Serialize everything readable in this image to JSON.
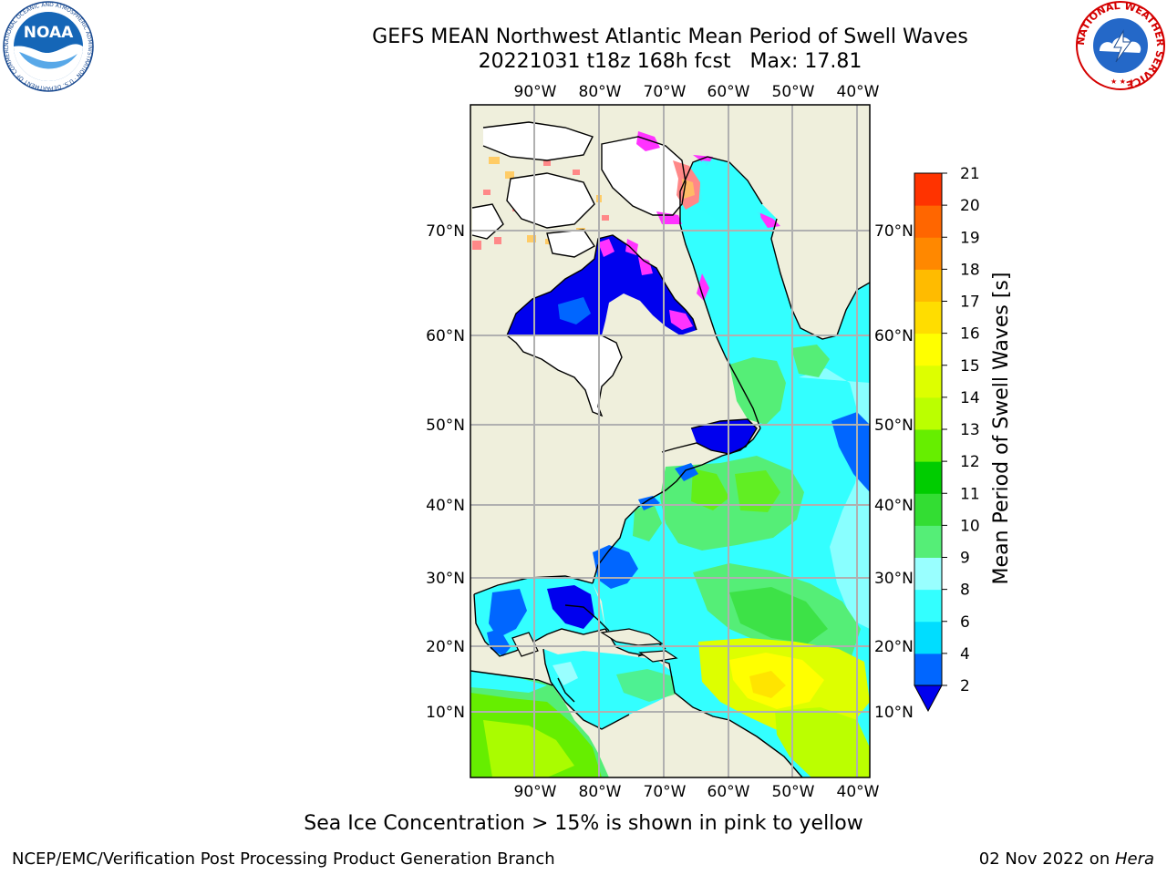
{
  "header": {
    "title": "GEFS MEAN Northwest Atlantic Mean Period of Swell Waves",
    "subtitle": "20221031 t18z 168h fcst   Max: 17.81"
  },
  "logos": {
    "noaa": {
      "label": "NOAA",
      "ring_text": "NATIONAL OCEANIC AND ATMOSPHERIC ADMINISTRATION · U.S. DEPARTMENT OF COMMERCE"
    },
    "nws": {
      "ring_text": "NATIONAL WEATHER SERVICE"
    }
  },
  "map": {
    "lon_labels": [
      "90°W",
      "80°W",
      "70°W",
      "60°W",
      "50°W",
      "40°W"
    ],
    "lat_labels": [
      "70°N",
      "60°N",
      "50°N",
      "40°N",
      "30°N",
      "20°N",
      "10°N"
    ],
    "land_color": "#efefdc",
    "ice_color": "#ffffff"
  },
  "colorbar": {
    "label": "Mean Period of Swell Waves [s]",
    "ticks": [
      "2",
      "4",
      "6",
      "8",
      "9",
      "10",
      "11",
      "12",
      "13",
      "14",
      "15",
      "16",
      "17",
      "18",
      "19",
      "20",
      "21"
    ],
    "colors": [
      "#0066ff",
      "#00ddff",
      "#33ffff",
      "#99ffff",
      "#55ee77",
      "#33dd33",
      "#00cc00",
      "#66ee00",
      "#bbff00",
      "#ddff00",
      "#ffff00",
      "#ffdd00",
      "#ffbb00",
      "#ff8800",
      "#ff6600",
      "#ff3300",
      "#ff0000"
    ],
    "under_color": "#0000ee"
  },
  "note": "Sea Ice Concentration > 15% is shown in pink to yellow",
  "footer": {
    "left": "NCEP/EMC/Verification Post Processing Product Generation Branch",
    "right_date": "02 Nov 2022 on ",
    "right_host": "Hera"
  }
}
